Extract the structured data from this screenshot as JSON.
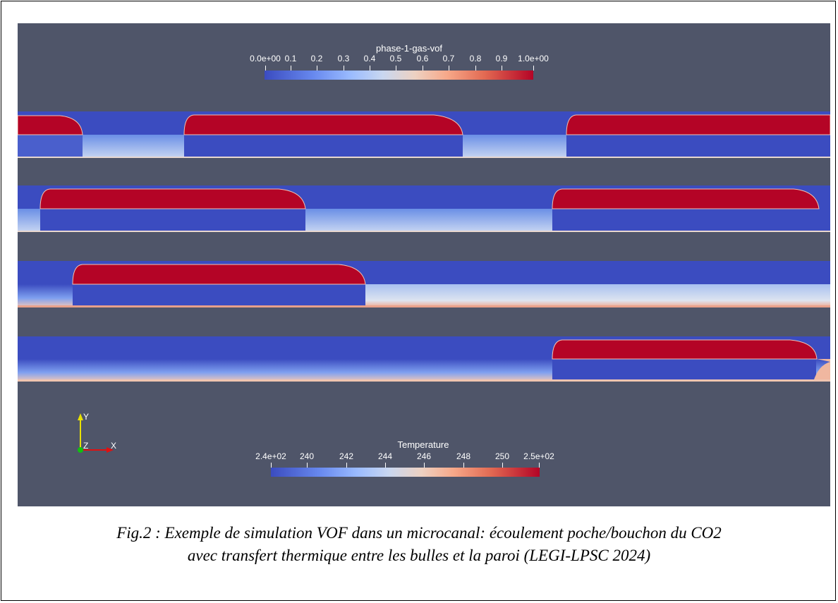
{
  "vof_bar": {
    "title": "phase-1-gas-vof",
    "ticks": [
      "0.0e+00",
      "0.1",
      "0.2",
      "0.3",
      "0.4",
      "0.5",
      "0.6",
      "0.7",
      "0.8",
      "0.9",
      "1.0e+00"
    ]
  },
  "temp_bar": {
    "title": "Temperature",
    "ticks": [
      "2.4e+02",
      "240",
      "242",
      "244",
      "246",
      "248",
      "250",
      "2.5e+02"
    ]
  },
  "axes": {
    "y": "Y",
    "z": "Z",
    "x": "X"
  },
  "colors": {
    "background": "#4f5569",
    "gas": "#b40426",
    "liquid": "#3b4cc0",
    "wall_hot": "#f4b9a0"
  },
  "caption": {
    "line1": "Fig.2 : Exemple de simulation VOF dans un microcanal: écoulement poche/bouchon du CO2",
    "line2": "avec transfert thermique entre les bulles et la paroi (LEGI-LPSC 2024)"
  }
}
